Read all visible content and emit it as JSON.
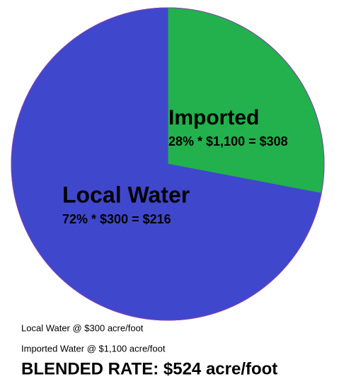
{
  "chart_data": {
    "type": "pie",
    "categories": [
      "Imported",
      "Local Water"
    ],
    "values": [
      28,
      72
    ],
    "value_labels": [
      "28% * $1,100 = $308",
      "72% * $300 = $216"
    ],
    "colors": [
      "#22b14c",
      "#3f48cc"
    ],
    "annotations": [
      "Local Water @ $300 acre/foot",
      "Imported Water @ $1,100 acre/foot",
      "BLENDED RATE: $524 acre/foot"
    ]
  }
}
